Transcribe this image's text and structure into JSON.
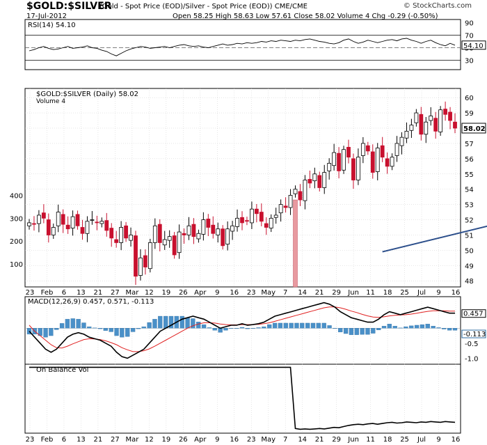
{
  "header": {
    "symbol": "$GOLD:$SILVER",
    "description": "(Gold - Spot Price (EOD)/Silver - Spot Price (EOD))  CME/CME",
    "date": "17-Jul-2012",
    "quote": "Open 58.25  High 58.63  Low 57.61  Close 58.02  Volume 4  Chg -0.29 (-0.50%)",
    "brand": "© StockCharts.com"
  },
  "colors": {
    "up": "#000000",
    "down": "#c8102e",
    "volume": "#e89aa0",
    "trendline": "#2a4d8a",
    "macd_line": "#000000",
    "signal_line": "#e02020",
    "histogram": "#4a90c8",
    "obv_line": "#000000",
    "rsi_line": "#000000",
    "rsi_fill": "#3a8a3a",
    "grid": "#cccccc"
  },
  "chart_data": [
    {
      "type": "line",
      "panel": "rsi",
      "label": "RSI(14) 54.10",
      "y_ticks": [
        30,
        50,
        70,
        90
      ],
      "reference_lines": [
        30,
        70
      ],
      "last_value": 54.1,
      "last_label": "54.10",
      "ylim": [
        15,
        95
      ],
      "values": [
        45,
        47,
        50,
        52,
        49,
        47,
        48,
        50,
        52,
        49,
        50,
        51,
        53,
        50,
        49,
        46,
        44,
        40,
        37,
        41,
        45,
        48,
        50,
        52,
        51,
        49,
        50,
        51,
        52,
        50,
        52,
        54,
        55,
        53,
        52,
        53,
        51,
        50,
        52,
        54,
        56,
        54,
        55,
        57,
        56,
        58,
        57,
        58,
        60,
        59,
        61,
        60,
        62,
        61,
        60,
        62,
        61,
        63,
        64,
        62,
        60,
        59,
        57,
        56,
        58,
        62,
        64,
        60,
        57,
        59,
        62,
        60,
        58,
        60,
        62,
        63,
        61,
        64,
        65,
        62,
        60,
        57,
        60,
        62,
        58,
        55,
        53,
        57,
        54
      ]
    },
    {
      "type": "candlestick",
      "panel": "price",
      "label": "$GOLD:$SILVER (Daily) 58.02",
      "volume_label": "Volume 4",
      "last_label": "58.02",
      "y_ticks": [
        48,
        49,
        50,
        51,
        52,
        53,
        54,
        55,
        56,
        57,
        58,
        59,
        60
      ],
      "ylim": [
        47.6,
        60.6
      ],
      "volume_ticks": [
        100,
        200,
        300,
        400
      ],
      "volume_ylim": [
        0,
        520
      ],
      "x_labels": [
        "23",
        "Feb",
        "6",
        "13",
        "21",
        "27",
        "Mar",
        "12",
        "19",
        "26",
        "Apr",
        "9",
        "16",
        "23",
        "May",
        "7",
        "14",
        "21",
        "29",
        "Jun",
        "11",
        "18",
        "25",
        "Jul",
        "9",
        "16"
      ],
      "closes": [
        51.8,
        51.7,
        52.3,
        52.1,
        51.0,
        51.5,
        52.5,
        51.7,
        51.4,
        52.2,
        51.6,
        51.1,
        51.9,
        52.0,
        51.8,
        51.9,
        51.3,
        50.8,
        50.5,
        51.5,
        50.8,
        51.0,
        48.3,
        49.5,
        48.9,
        50.5,
        51.6,
        50.5,
        50.7,
        50.9,
        49.7,
        51.2,
        51.0,
        51.6,
        50.9,
        51.1,
        52.0,
        51.5,
        51.1,
        51.4,
        50.3,
        51.4,
        51.6,
        52.1,
        51.8,
        51.9,
        52.7,
        52.4,
        51.9,
        51.5,
        52.1,
        52.3,
        53.0,
        52.8,
        53.6,
        54.0,
        53.3,
        54.6,
        54.4,
        55.0,
        54.1,
        55.1,
        55.7,
        56.4,
        55.2,
        56.6,
        56.1,
        54.6,
        56.1,
        57.0,
        56.5,
        55.1,
        56.7,
        56.1,
        55.5,
        56.1,
        57.0,
        57.4,
        57.8,
        58.2,
        59.0,
        57.6,
        58.4,
        58.8,
        57.8,
        59.2,
        58.9,
        58.5,
        58.0
      ],
      "volume": [
        {
          "index": 55,
          "value": 380
        }
      ],
      "trendline": {
        "from": [
          73,
          49.9
        ],
        "to": [
          175,
          57.8
        ]
      }
    },
    {
      "type": "line",
      "panel": "macd",
      "label": "MACD(12,26,9) 0.457, 0.571, -0.113",
      "values_text": {
        "macd": "0.457",
        "signal": "0.571",
        "hist": "-0.113"
      },
      "y_ticks": [
        -1.0,
        -0.5,
        0.5
      ],
      "ylim": [
        -1.2,
        1.05
      ],
      "macd": [
        -0.1,
        -0.3,
        -0.5,
        -0.7,
        -0.8,
        -0.7,
        -0.5,
        -0.3,
        -0.2,
        -0.15,
        -0.2,
        -0.3,
        -0.35,
        -0.4,
        -0.5,
        -0.6,
        -0.8,
        -0.95,
        -1.0,
        -0.9,
        -0.8,
        -0.7,
        -0.5,
        -0.3,
        -0.1,
        0.0,
        0.1,
        0.2,
        0.3,
        0.35,
        0.4,
        0.35,
        0.3,
        0.2,
        0.1,
        0.0,
        0.05,
        0.1,
        0.1,
        0.15,
        0.1,
        0.12,
        0.15,
        0.2,
        0.3,
        0.4,
        0.45,
        0.5,
        0.55,
        0.6,
        0.65,
        0.7,
        0.75,
        0.8,
        0.85,
        0.8,
        0.7,
        0.55,
        0.45,
        0.35,
        0.3,
        0.25,
        0.2,
        0.2,
        0.3,
        0.45,
        0.55,
        0.5,
        0.45,
        0.5,
        0.55,
        0.6,
        0.65,
        0.7,
        0.65,
        0.6,
        0.55,
        0.5,
        0.5
      ],
      "signal": [
        0.1,
        -0.1,
        -0.25,
        -0.4,
        -0.55,
        -0.65,
        -0.66,
        -0.6,
        -0.52,
        -0.45,
        -0.38,
        -0.35,
        -0.36,
        -0.38,
        -0.42,
        -0.48,
        -0.55,
        -0.65,
        -0.72,
        -0.78,
        -0.78,
        -0.75,
        -0.69,
        -0.6,
        -0.5,
        -0.4,
        -0.3,
        -0.2,
        -0.1,
        0.0,
        0.08,
        0.14,
        0.18,
        0.18,
        0.17,
        0.14,
        0.12,
        0.11,
        0.11,
        0.12,
        0.12,
        0.12,
        0.13,
        0.15,
        0.18,
        0.23,
        0.28,
        0.33,
        0.38,
        0.43,
        0.48,
        0.53,
        0.58,
        0.63,
        0.68,
        0.71,
        0.71,
        0.68,
        0.63,
        0.57,
        0.52,
        0.46,
        0.41,
        0.37,
        0.36,
        0.38,
        0.41,
        0.43,
        0.44,
        0.45,
        0.47,
        0.5,
        0.53,
        0.56,
        0.58,
        0.58,
        0.58,
        0.57,
        0.57
      ]
    },
    {
      "type": "line",
      "panel": "obv",
      "label": "On Balance Vol",
      "values": [
        1,
        1,
        1,
        1,
        1,
        1,
        1,
        1,
        1,
        1,
        1,
        1,
        1,
        1,
        1,
        1,
        1,
        1,
        1,
        1,
        1,
        1,
        1,
        1,
        1,
        1,
        1,
        1,
        1,
        1,
        1,
        1,
        1,
        1,
        1,
        1,
        1,
        1,
        1,
        1,
        1,
        1,
        1,
        1,
        1,
        1,
        1,
        1,
        1,
        1,
        1,
        1,
        1,
        1,
        1,
        -0.58,
        -0.6,
        -0.59,
        -0.6,
        -0.59,
        -0.58,
        -0.59,
        -0.57,
        -0.55,
        -0.56,
        -0.53,
        -0.5,
        -0.48,
        -0.47,
        -0.48,
        -0.46,
        -0.45,
        -0.47,
        -0.45,
        -0.43,
        -0.42,
        -0.44,
        -0.43,
        -0.41,
        -0.42,
        -0.43,
        -0.41,
        -0.42,
        -0.4,
        -0.41,
        -0.42,
        -0.4,
        -0.41,
        -0.42
      ],
      "ylim": [
        -0.7,
        1.08
      ]
    }
  ]
}
